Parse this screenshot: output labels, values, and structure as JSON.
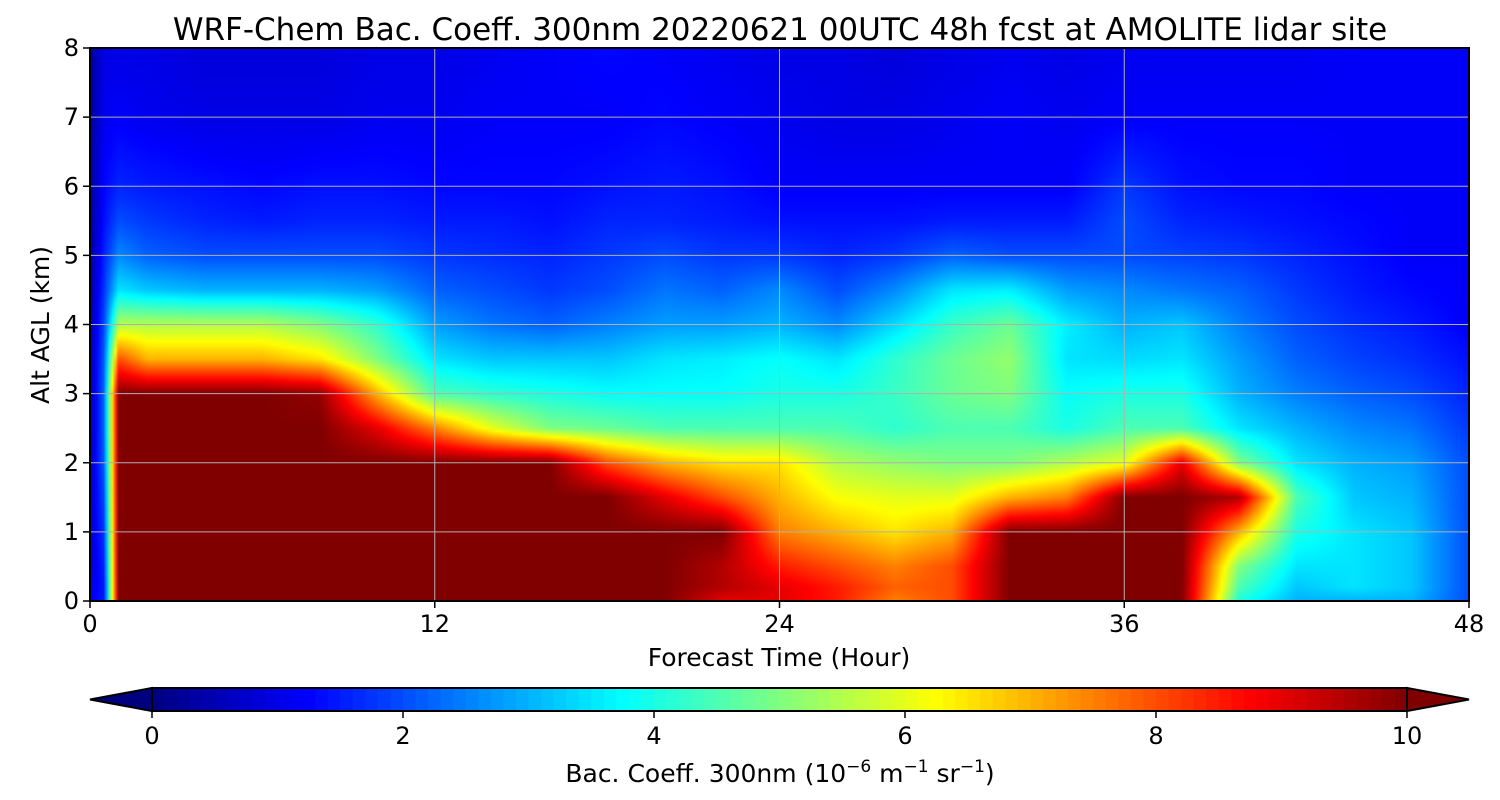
{
  "chart_data": {
    "type": "heatmap",
    "title": "WRF-Chem Bac. Coeff. 300nm  20220621 00UTC 48h fcst at AMOLITE lidar site",
    "xlabel": "Forecast Time (Hour)",
    "ylabel": "Alt AGL (km)",
    "xlim": [
      0,
      48
    ],
    "ylim": [
      0,
      8
    ],
    "x_ticks": [
      "0",
      "12",
      "24",
      "36",
      "48"
    ],
    "y_ticks": [
      "0",
      "1",
      "2",
      "3",
      "4",
      "5",
      "6",
      "7",
      "8"
    ],
    "grid": true,
    "colormap": "jet",
    "colorbar": {
      "orientation": "horizontal",
      "range": [
        0,
        10
      ],
      "ticks": [
        "0",
        "2",
        "4",
        "6",
        "8",
        "10"
      ],
      "label_main": "Bac. Coeff. 300nm  (10",
      "label_exp1": "−6",
      "label_unit_m": " m",
      "label_exp2": "−1",
      "label_unit_sr": " sr",
      "label_exp3": "−1",
      "label_close": ")",
      "extend": "both"
    },
    "x": [
      0,
      0.5,
      1,
      2,
      4,
      6,
      8,
      10,
      12,
      14,
      16,
      18,
      20,
      22,
      24,
      26,
      28,
      30,
      32,
      34,
      36,
      38,
      40,
      42,
      44,
      46,
      48
    ],
    "y": [
      0,
      0.2,
      0.5,
      1,
      1.5,
      2,
      2.5,
      3,
      3.5,
      4,
      4.5,
      5,
      5.5,
      6,
      7,
      8
    ],
    "z": [
      [
        1.2,
        1.5,
        10,
        10,
        10,
        10,
        10,
        10,
        10,
        10,
        10,
        10,
        10,
        9,
        9,
        8.5,
        7.5,
        8,
        10,
        10,
        10,
        10,
        4,
        3,
        3,
        3,
        2
      ],
      [
        1.0,
        1.5,
        10,
        10,
        10,
        10,
        10,
        10,
        10,
        10,
        10,
        10,
        10,
        9.5,
        9,
        8.5,
        7.8,
        8,
        10,
        10,
        10,
        10,
        4.5,
        3.2,
        3.5,
        3.2,
        2
      ],
      [
        0.8,
        1.6,
        10,
        10,
        10,
        10,
        10,
        10,
        10,
        10,
        10,
        10,
        10,
        9.5,
        8.5,
        8,
        7.5,
        8,
        10,
        10,
        10,
        10,
        5,
        3.5,
        3.5,
        3.2,
        2
      ],
      [
        0.8,
        1.8,
        10,
        10,
        10,
        10,
        10,
        10,
        10,
        10,
        10,
        10,
        10,
        10,
        7.5,
        7,
        6.5,
        7,
        10,
        10,
        10,
        10,
        7,
        4,
        3.5,
        3.2,
        2
      ],
      [
        0.7,
        2,
        10,
        10,
        10,
        10,
        10,
        10,
        10,
        10,
        10,
        10,
        9,
        8,
        7,
        6.2,
        6,
        6,
        7,
        7.5,
        10,
        10,
        9.5,
        4.5,
        3.2,
        3.0,
        2
      ],
      [
        0.6,
        2.2,
        10,
        10,
        10,
        10,
        10,
        10,
        10,
        10,
        10,
        8,
        7,
        6.5,
        6.5,
        5.5,
        5.2,
        5,
        5,
        5.5,
        6,
        9,
        5,
        3.5,
        3.0,
        2.8,
        2
      ],
      [
        0.5,
        2.3,
        10,
        10,
        10,
        10,
        10,
        9,
        7.5,
        6,
        5,
        4.8,
        4.5,
        4.5,
        4.5,
        4.5,
        4.2,
        4.5,
        4.5,
        4,
        4.5,
        4.5,
        3.5,
        3,
        2.6,
        2.4,
        1.8
      ],
      [
        0.5,
        2.3,
        10,
        10,
        10,
        10,
        9.8,
        7,
        4.5,
        4.2,
        4,
        3.8,
        3.8,
        3.8,
        4,
        4,
        4.3,
        4.8,
        5,
        3.8,
        4,
        4,
        3,
        2.5,
        2.2,
        2,
        1.6
      ],
      [
        0.5,
        2.2,
        8,
        7,
        7,
        7,
        6.5,
        5,
        3.5,
        3.2,
        3.2,
        3.2,
        3.5,
        3.6,
        3.8,
        3.5,
        4.2,
        4.8,
        5.2,
        3.5,
        3.4,
        3.5,
        2.8,
        2.2,
        1.9,
        1.7,
        1.4
      ],
      [
        0.4,
        2,
        5.5,
        5.5,
        5.5,
        5.5,
        5,
        4.2,
        2.8,
        2.4,
        2.2,
        2.5,
        2.8,
        2.8,
        3,
        2.6,
        3.4,
        4.3,
        4.8,
        3.6,
        3,
        3.2,
        2.5,
        2,
        1.7,
        1.5,
        1.2
      ],
      [
        0.3,
        1.8,
        3.5,
        3.2,
        3,
        3,
        3,
        2.8,
        2.2,
        2,
        1.8,
        2,
        2.4,
        2.2,
        2.6,
        2,
        2.6,
        3.5,
        3.6,
        2.8,
        2.6,
        2.4,
        2.2,
        1.8,
        1.5,
        1.3,
        1.2
      ],
      [
        0.3,
        1.6,
        2.6,
        2.2,
        2,
        2,
        2,
        2,
        1.8,
        1.7,
        1.6,
        1.8,
        2,
        1.8,
        1.8,
        1.6,
        1.8,
        2.2,
        2,
        2,
        2,
        1.9,
        1.8,
        1.6,
        1.4,
        1.2,
        1.2
      ],
      [
        0.3,
        1.4,
        2,
        1.8,
        1.6,
        1.5,
        1.6,
        1.6,
        1.5,
        1.5,
        1.4,
        1.6,
        1.6,
        1.5,
        1.4,
        1.4,
        1.4,
        1.5,
        1.5,
        1.5,
        2,
        1.6,
        1.5,
        1.4,
        1.3,
        1.2,
        1.2
      ],
      [
        0.3,
        1.3,
        1.6,
        1.5,
        1.4,
        1.3,
        1.4,
        1.4,
        1.3,
        1.3,
        1.3,
        1.4,
        1.5,
        1.4,
        1.2,
        1.2,
        1.2,
        1.2,
        1.2,
        1.2,
        1.8,
        1.4,
        1.3,
        1.3,
        1.2,
        1.2,
        1.2
      ],
      [
        0.3,
        1.1,
        1.2,
        1.1,
        1.0,
        1.0,
        1.0,
        1.1,
        1.1,
        1.2,
        1.2,
        1.2,
        1.3,
        1.2,
        1.1,
        1.0,
        1.0,
        1.1,
        1.2,
        1.1,
        1.2,
        1.2,
        1.2,
        1.2,
        1.2,
        1.2,
        1.2
      ],
      [
        0.3,
        1.0,
        1.0,
        1.0,
        0.9,
        0.9,
        0.9,
        1.0,
        1.0,
        1.1,
        1.2,
        1.3,
        1.2,
        1.1,
        1.0,
        1.0,
        0.9,
        1.0,
        1.1,
        1.0,
        1.1,
        1.1,
        1.1,
        1.1,
        1.2,
        1.2,
        1.2
      ]
    ]
  }
}
